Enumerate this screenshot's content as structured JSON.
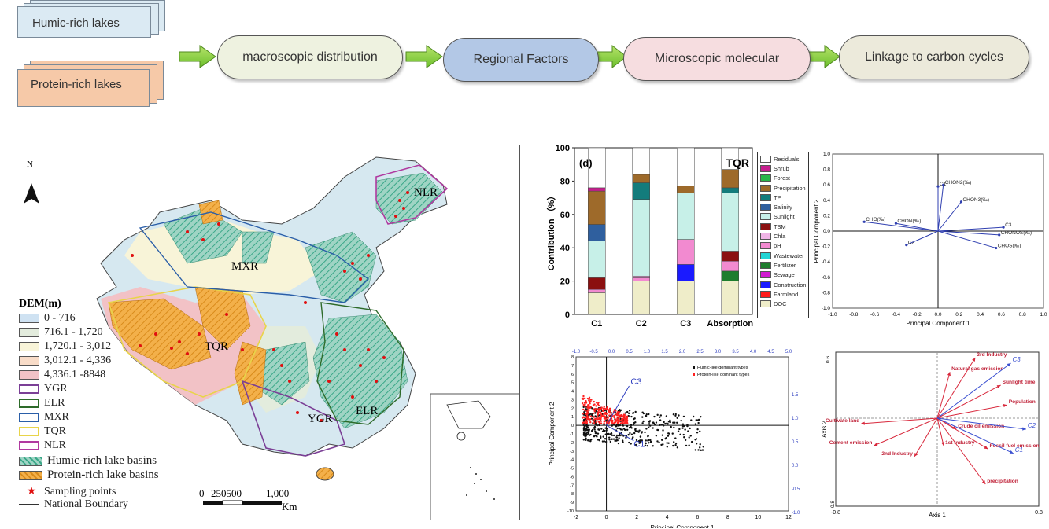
{
  "flow": {
    "humic_label": "Humic-rich lakes",
    "protein_label": "Protein-rich lakes",
    "steps": [
      "macroscopic distribution",
      "Regional Factors",
      "Microscopic molecular",
      "Linkage to carbon cycles"
    ],
    "colors": [
      "#eef2e0",
      "#b3c8e6",
      "#f6dde0",
      "#eceadb"
    ]
  },
  "map": {
    "north": "N",
    "dem_title": "DEM(m)",
    "dem_classes": [
      {
        "label": "0 - 716",
        "color": "#cfe2f2"
      },
      {
        "label": "716.1 - 1,720",
        "color": "#e3ecdd"
      },
      {
        "label": "1,720.1 - 3,012",
        "color": "#f8f4d8"
      },
      {
        "label": "3,012.1 - 4,336",
        "color": "#f8dcc8"
      },
      {
        "label": "4,336.1 -8848",
        "color": "#f2c2c6"
      }
    ],
    "regions": [
      {
        "label": "YGR",
        "color": "#7b3f96"
      },
      {
        "label": "ELR",
        "color": "#2e6b2a"
      },
      {
        "label": "MXR",
        "color": "#2a5ea8"
      },
      {
        "label": "TQR",
        "color": "#e8d44a"
      },
      {
        "label": "NLR",
        "color": "#b03aa0"
      }
    ],
    "basins": [
      "Humic-rich lake basins",
      "Protein-rich lake basins"
    ],
    "sampling": "Sampling points",
    "boundary": "National Boundary",
    "scale_ticks": [
      "0",
      "250500",
      "1,000"
    ],
    "scale_unit": "Km",
    "region_labels": [
      "NLR",
      "MXR",
      "TQR",
      "YGR",
      "ELR"
    ]
  },
  "chart_data": [
    {
      "type": "bar",
      "panel_label": "(d)",
      "corner_label": "TQR",
      "ylabel": "Contribution （%）",
      "ylim": [
        0,
        100
      ],
      "yticks": [
        "0",
        "20",
        "40",
        "60",
        "80",
        "100"
      ],
      "categories": [
        "C1",
        "C2",
        "C3",
        "Absorption"
      ],
      "legend": [
        "Residuals",
        "Shrub",
        "Forest",
        "Precipitation",
        "TP",
        "Salinity",
        "Sunlight",
        "TSM",
        "Chla",
        "pH",
        "Wastewater",
        "Fertilizer",
        "Sewage",
        "Construction",
        "Farmland",
        "DOC"
      ],
      "colors": {
        "DOC": "#efedc9",
        "Farmland": "#ff1a1a",
        "Construction": "#1a1aff",
        "Sewage": "#d11ad1",
        "Fertilizer": "#1e7d2e",
        "Wastewater": "#22d4d4",
        "pH": "#f28ad0",
        "Chla": "#f0b4e6",
        "TSM": "#8b1010",
        "Sunlight": "#c7f0e8",
        "Salinity": "#2f5f9e",
        "TP": "#137c7c",
        "Precipitation": "#9e6a2a",
        "Forest": "#2ab54a",
        "Shrub": "#c61e8e",
        "Residuals": "#ffffff"
      },
      "series": [
        {
          "name": "DOC",
          "values": [
            13,
            20,
            20,
            20
          ]
        },
        {
          "name": "Farmland",
          "values": [
            0,
            0,
            0,
            0
          ]
        },
        {
          "name": "Construction",
          "values": [
            0,
            0,
            10,
            0
          ]
        },
        {
          "name": "Sewage",
          "values": [
            0,
            0,
            0,
            0
          ]
        },
        {
          "name": "Fertilizer",
          "values": [
            0,
            0,
            0,
            6
          ]
        },
        {
          "name": "Wastewater",
          "values": [
            0,
            0,
            0,
            0
          ]
        },
        {
          "name": "pH",
          "values": [
            2,
            2,
            15,
            6
          ]
        },
        {
          "name": "Chla",
          "values": [
            0,
            1,
            0,
            0
          ]
        },
        {
          "name": "TSM",
          "values": [
            7,
            0,
            0,
            6
          ]
        },
        {
          "name": "Sunlight",
          "values": [
            22,
            46,
            28,
            35
          ]
        },
        {
          "name": "Salinity",
          "values": [
            10,
            0,
            0,
            0
          ]
        },
        {
          "name": "TP",
          "values": [
            0,
            10,
            0,
            3
          ]
        },
        {
          "name": "Precipitation",
          "values": [
            20,
            5,
            4,
            11
          ]
        },
        {
          "name": "Forest",
          "values": [
            0,
            0,
            0,
            0
          ]
        },
        {
          "name": "Shrub",
          "values": [
            2,
            0,
            0,
            0
          ]
        },
        {
          "name": "Residuals",
          "values": [
            24,
            16,
            23,
            13
          ]
        }
      ]
    },
    {
      "type": "scatter",
      "xlabel": "Principal Component 1",
      "ylabel": "Principal Component 2",
      "xlim": [
        -1.0,
        1.0
      ],
      "ylim": [
        -1.0,
        1.0
      ],
      "ticks": [
        "-1.0",
        "-0.8",
        "-0.6",
        "-0.4",
        "-0.2",
        "0.0",
        "0.2",
        "0.4",
        "0.6",
        "0.8",
        "1.0"
      ],
      "vectors": [
        {
          "label": "C1",
          "x": 0.0,
          "y": 0.58
        },
        {
          "label": "CHON2(‰)",
          "x": 0.05,
          "y": 0.6
        },
        {
          "label": "CHON3(‰)",
          "x": 0.22,
          "y": 0.38
        },
        {
          "label": "CHO(‰)",
          "x": -0.7,
          "y": 0.12
        },
        {
          "label": "CHON(‰)",
          "x": -0.4,
          "y": 0.1
        },
        {
          "label": "C3",
          "x": 0.62,
          "y": 0.05
        },
        {
          "label": "CHONOS(‰)",
          "x": 0.58,
          "y": -0.05
        },
        {
          "label": "CHOS(‰)",
          "x": 0.55,
          "y": -0.22
        },
        {
          "label": "C2",
          "x": -0.3,
          "y": -0.18
        }
      ]
    },
    {
      "type": "scatter",
      "xlabel": "Principal Component 1",
      "ylabel": "Principal Component 2",
      "xlim": [
        -2,
        12
      ],
      "ylim": [
        -10,
        8
      ],
      "xticks": [
        "-2",
        "0",
        "2",
        "4",
        "6",
        "8",
        "10",
        "12"
      ],
      "yticks": [
        "-10",
        "-9",
        "-8",
        "-7",
        "-6",
        "-5",
        "-4",
        "-3",
        "-2",
        "-1",
        "0",
        "1",
        "2",
        "3",
        "4",
        "5",
        "6",
        "7",
        "8"
      ],
      "top_ticks": [
        "-1.0",
        "-0.5",
        "0.0",
        "0.5",
        "1.0",
        "1.5",
        "2.0",
        "2.5",
        "3.0",
        "3.5",
        "4.0",
        "4.5",
        "5.0"
      ],
      "right_ticks": [
        "1.5",
        "1.0",
        "0.5",
        "0.0",
        "-0.5",
        "-1.0"
      ],
      "series": [
        {
          "name": "Humic-like dominant types",
          "color": "#111111"
        },
        {
          "name": "Protein-like dominant types",
          "color": "#ff2020"
        }
      ],
      "vector_labels": [
        "C3",
        "C1"
      ]
    },
    {
      "type": "scatter",
      "xlabel": "Axis 1",
      "ylabel": "Axis 2",
      "xlim": [
        -0.8,
        0.8
      ],
      "ylim": [
        -0.8,
        0.6
      ],
      "xticks": [
        "-0.8",
        "0.8"
      ],
      "yticks": [
        "0.6",
        "-0.8"
      ],
      "vectors": [
        {
          "label": "3rd Industry",
          "x": 0.3,
          "y": 0.55,
          "kind": "factor"
        },
        {
          "label": "Natural gas emission",
          "x": 0.1,
          "y": 0.42,
          "kind": "factor"
        },
        {
          "label": "Sunlight time",
          "x": 0.5,
          "y": 0.3,
          "kind": "factor"
        },
        {
          "label": "Population",
          "x": 0.55,
          "y": 0.12,
          "kind": "factor"
        },
        {
          "label": "Cultivate land",
          "x": -0.6,
          "y": -0.05,
          "kind": "factor"
        },
        {
          "label": "Crude oil emission",
          "x": 0.15,
          "y": -0.1,
          "kind": "factor"
        },
        {
          "label": "Cement emission",
          "x": -0.5,
          "y": -0.25,
          "kind": "factor"
        },
        {
          "label": "1st Industry",
          "x": 0.05,
          "y": -0.25,
          "kind": "factor"
        },
        {
          "label": "Fossil fuel emission",
          "x": 0.4,
          "y": -0.28,
          "kind": "factor"
        },
        {
          "label": "2nd Industry",
          "x": -0.18,
          "y": -0.35,
          "kind": "factor"
        },
        {
          "label": "precipitation",
          "x": 0.38,
          "y": -0.6,
          "kind": "factor"
        },
        {
          "label": "C3",
          "x": 0.58,
          "y": 0.5,
          "kind": "component"
        },
        {
          "label": "C2",
          "x": 0.7,
          "y": -0.1,
          "kind": "component"
        },
        {
          "label": "C1",
          "x": 0.6,
          "y": -0.32,
          "kind": "component"
        }
      ]
    }
  ]
}
